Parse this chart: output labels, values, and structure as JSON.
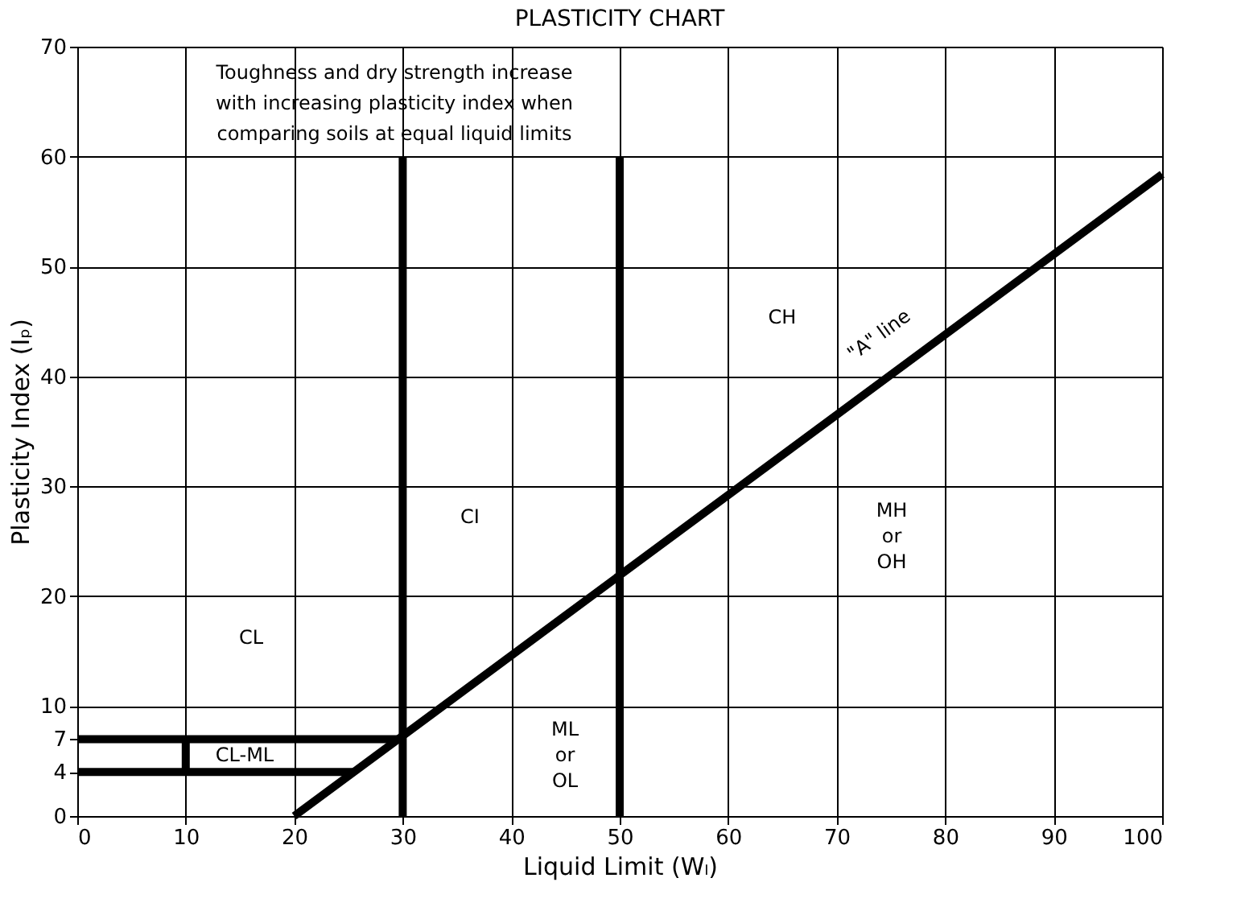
{
  "chart_data": {
    "type": "line",
    "title": "PLASTICITY CHART",
    "xlabel": "Liquid Limit  (Wₗ)",
    "ylabel": "Plasticity Index  (Iₚ)",
    "xlim": [
      0,
      100
    ],
    "ylim": [
      0,
      70
    ],
    "xticks": [
      0,
      10,
      20,
      30,
      40,
      50,
      60,
      70,
      80,
      90,
      100
    ],
    "yticks": [
      0,
      4,
      7,
      10,
      20,
      30,
      40,
      50,
      60,
      70
    ],
    "grid": true,
    "line_style": "solid",
    "marker": "none",
    "series": [
      {
        "color": "#000000",
        "x": [
          20,
          100
        ],
        "values": [
          0,
          58.4
        ]
      },
      {
        "color": "#000000",
        "x": [
          30,
          30
        ],
        "values": [
          0,
          60
        ]
      },
      {
        "color": "#000000",
        "x": [
          50,
          50
        ],
        "values": [
          0,
          60
        ]
      },
      {
        "color": "#000000",
        "x": [
          0,
          29.6
        ],
        "values": [
          7,
          7
        ]
      },
      {
        "color": "#000000",
        "x": [
          0,
          25.5
        ],
        "values": [
          4,
          4
        ]
      },
      {
        "color": "#000000",
        "x": [
          10,
          10
        ],
        "values": [
          4,
          7
        ]
      }
    ],
    "annotations": [
      "Toughness and dry strength increase\nwith increasing plasticity index when\ncomparing soils at equal liquid limits",
      "CL",
      "CL-ML",
      "CI",
      "CH",
      "MH\nor\nOH",
      "ML\nor\nOL",
      "\"A\" line"
    ]
  }
}
